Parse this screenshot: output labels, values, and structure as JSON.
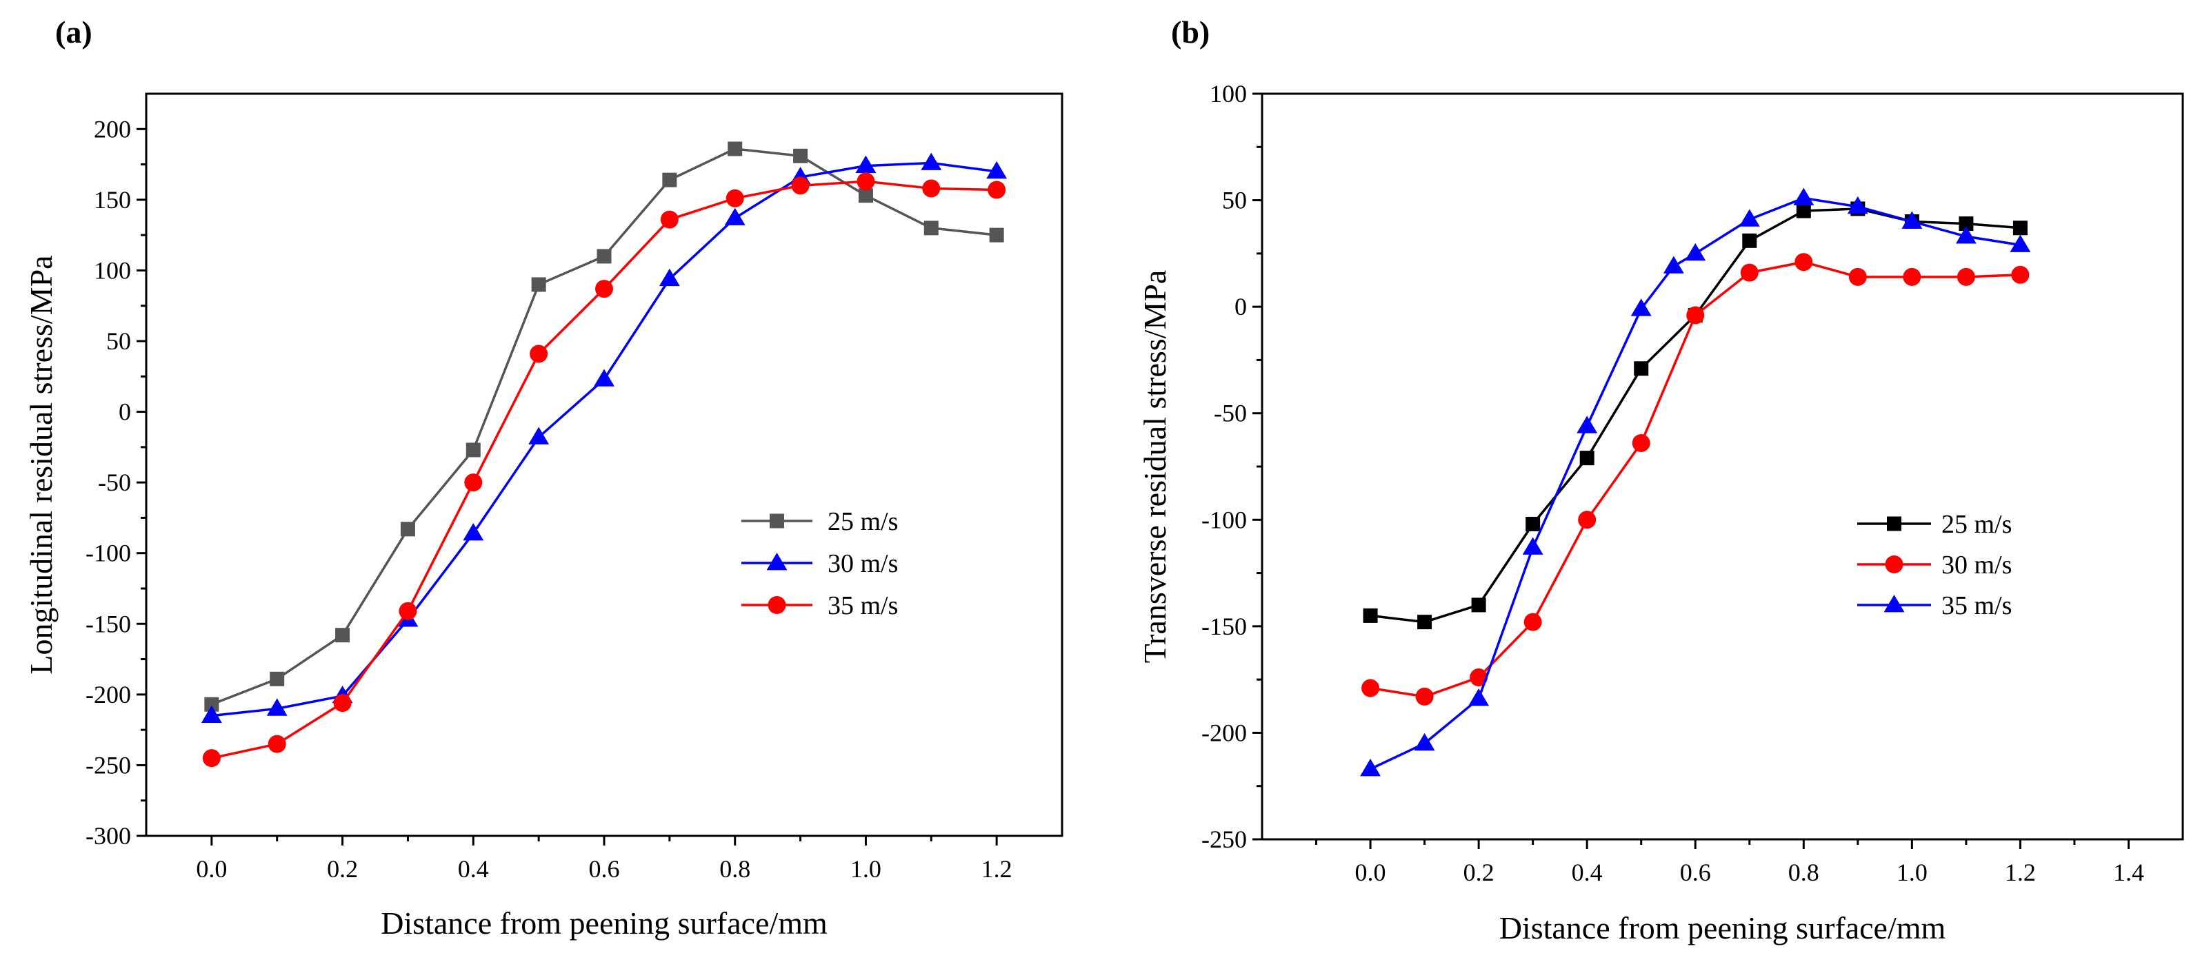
{
  "chart_data": [
    {
      "type": "line",
      "panel_label": "(a)",
      "title": "",
      "xlabel": "Distance from peening surface/mm",
      "ylabel": "Longitudinal residual stress/MPa",
      "xlim": [
        -0.1,
        1.3
      ],
      "ylim": [
        -300,
        225
      ],
      "xticks": [
        0.0,
        0.2,
        0.4,
        0.6,
        0.8,
        1.0,
        1.2
      ],
      "xtick_labels": [
        "0.0",
        "0.2",
        "0.4",
        "0.6",
        "0.8",
        "1.0",
        "1.2"
      ],
      "yticks": [
        -300,
        -250,
        -200,
        -150,
        -100,
        -50,
        0,
        50,
        100,
        150,
        200
      ],
      "ytick_labels": [
        "-300",
        "-250",
        "-200",
        "-150",
        "-100",
        "-50",
        "0",
        "50",
        "100",
        "150",
        "200"
      ],
      "grid": false,
      "legend_position": "right-middle",
      "x": [
        0.0,
        0.1,
        0.2,
        0.3,
        0.4,
        0.5,
        0.6,
        0.7,
        0.8,
        0.9,
        1.0,
        1.1,
        1.2
      ],
      "series": [
        {
          "name": "25 m/s",
          "color": "#555555",
          "marker": "square",
          "values": [
            -207,
            -189,
            -158,
            -83,
            -27,
            90,
            110,
            164,
            186,
            181,
            153,
            130,
            125
          ]
        },
        {
          "name": "30 m/s",
          "color": "#0000ff",
          "marker": "triangle",
          "values": [
            -215,
            -210,
            -201,
            -147,
            -86,
            -18,
            23,
            94,
            137,
            166,
            174,
            176,
            170
          ]
        },
        {
          "name": "35 m/s",
          "color": "#ff0000",
          "marker": "circle",
          "values": [
            -245,
            -235,
            -206,
            -141,
            -50,
            41,
            87,
            136,
            151,
            160,
            163,
            158,
            157
          ]
        }
      ]
    },
    {
      "type": "line",
      "panel_label": "(b)",
      "title": "",
      "xlabel": "Distance from peening surface/mm",
      "ylabel": "Transverse residual stress/MPa",
      "xlim": [
        -0.2,
        1.5
      ],
      "ylim": [
        -250,
        100
      ],
      "xticks": [
        0.0,
        0.2,
        0.4,
        0.6,
        0.8,
        1.0,
        1.2,
        1.4
      ],
      "xtick_labels": [
        "0.0",
        "0.2",
        "0.4",
        "0.6",
        "0.8",
        "1.0",
        "1.2",
        "1.4"
      ],
      "yticks": [
        -250,
        -200,
        -150,
        -100,
        -50,
        0,
        50,
        100
      ],
      "ytick_labels": [
        "-250",
        "-200",
        "-150",
        "-100",
        "-50",
        "0",
        "50",
        "100"
      ],
      "grid": false,
      "legend_position": "right-middle",
      "series": [
        {
          "name": "25 m/s",
          "color": "#000000",
          "marker": "square",
          "x": [
            0.0,
            0.1,
            0.2,
            0.3,
            0.4,
            0.5,
            0.6,
            0.7,
            0.8,
            0.9,
            1.0,
            1.1,
            1.2
          ],
          "values": [
            -145,
            -148,
            -140,
            -102,
            -71,
            -29,
            -4,
            31,
            45,
            46,
            40,
            39,
            37
          ]
        },
        {
          "name": "30 m/s",
          "color": "#ff0000",
          "marker": "circle",
          "x": [
            0.0,
            0.1,
            0.2,
            0.3,
            0.4,
            0.5,
            0.6,
            0.7,
            0.8,
            0.9,
            1.0,
            1.1,
            1.2
          ],
          "values": [
            -179,
            -183,
            -174,
            -148,
            -100,
            -64,
            -4,
            16,
            21,
            14,
            14,
            14,
            15
          ]
        },
        {
          "name": "35 m/s",
          "color": "#0000ff",
          "marker": "triangle",
          "x": [
            0.0,
            0.1,
            0.2,
            0.3,
            0.4,
            0.5,
            0.56,
            0.6,
            0.7,
            0.8,
            0.9,
            1.0,
            1.1,
            1.2
          ],
          "values": [
            -217,
            -205,
            -184,
            -113,
            -56,
            -1,
            19,
            25,
            41,
            51,
            47,
            40,
            33,
            29
          ]
        }
      ]
    }
  ]
}
